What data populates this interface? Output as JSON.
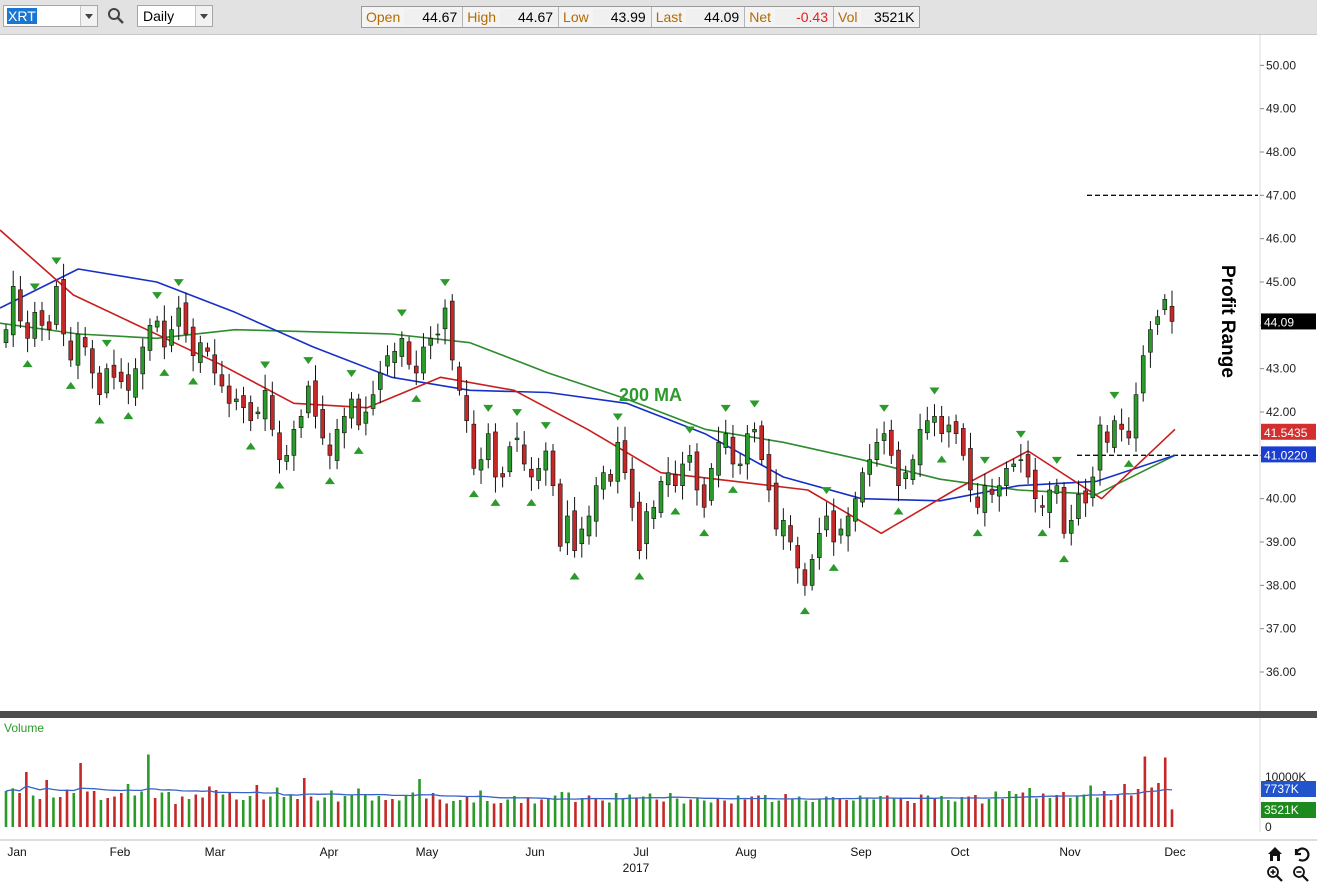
{
  "toolbar": {
    "symbol_value": "XRT",
    "period_value": "Daily",
    "quote": [
      {
        "label": "Open",
        "value": "44.67",
        "color": "#000000"
      },
      {
        "label": "High",
        "value": "44.67",
        "color": "#000000"
      },
      {
        "label": "Low",
        "value": "43.99",
        "color": "#000000"
      },
      {
        "label": "Last",
        "value": "44.09",
        "color": "#000000"
      },
      {
        "label": "Net",
        "value": "-0.43",
        "color": "#e02020"
      },
      {
        "label": "Vol",
        "value": "3521K",
        "color": "#000000"
      }
    ]
  },
  "chart_data": {
    "type": "candlestick",
    "y_ticks": [
      "36.00",
      "37.00",
      "38.00",
      "39.00",
      "40.00",
      "41.00",
      "42.00",
      "43.00",
      "44.00",
      "45.00",
      "46.00",
      "47.00",
      "48.00",
      "49.00",
      "50.00"
    ],
    "y_range": [
      35.1,
      50.7
    ],
    "x_labels": [
      "Jan",
      "Feb",
      "Mar",
      "Apr",
      "May",
      "Jun",
      "Jul",
      "Aug",
      "Sep",
      "Oct",
      "Nov",
      "Dec"
    ],
    "year_label": "2017",
    "price_labels": [
      {
        "text": "44.09",
        "value": 44.09,
        "bg": "#000000",
        "fg": "#ffffff"
      },
      {
        "text": "41.5435",
        "value": 41.5435,
        "bg": "#d32f2f",
        "fg": "#ffffff"
      },
      {
        "text": "41.0220",
        "value": 41.022,
        "bg": "#1a3fd0",
        "fg": "#ffffff"
      }
    ],
    "annotations": [
      {
        "text": "200 MA",
        "color": "#2e9a2e"
      },
      {
        "text": "Profit Range",
        "color": "#000000"
      }
    ],
    "reference_lines": [
      47.0,
      41.0
    ],
    "closes": [
      43.9,
      44.9,
      44.1,
      43.7,
      44.3,
      44.0,
      43.9,
      44.9,
      43.8,
      43.2,
      43.8,
      43.5,
      42.9,
      42.4,
      43.0,
      42.8,
      42.7,
      42.5,
      43.0,
      43.5,
      44.0,
      44.1,
      43.5,
      43.9,
      44.4,
      43.8,
      43.3,
      43.6,
      43.4,
      42.9,
      42.6,
      42.2,
      42.3,
      42.1,
      41.8,
      42.0,
      42.5,
      41.6,
      40.9,
      41.0,
      41.6,
      41.9,
      42.6,
      41.9,
      41.4,
      41.0,
      41.6,
      41.9,
      42.3,
      41.7,
      42.0,
      42.4,
      42.9,
      43.3,
      43.4,
      43.7,
      43.1,
      42.9,
      43.5,
      43.7,
      43.8,
      44.4,
      43.2,
      42.5,
      41.8,
      40.7,
      40.9,
      41.5,
      40.5,
      40.5,
      41.2,
      41.4,
      40.8,
      40.5,
      40.7,
      41.1,
      40.3,
      38.9,
      39.6,
      38.8,
      39.3,
      39.6,
      40.3,
      40.6,
      40.4,
      41.3,
      40.6,
      39.8,
      38.8,
      39.7,
      39.8,
      40.4,
      40.6,
      40.3,
      40.8,
      41.0,
      40.2,
      39.8,
      40.7,
      41.3,
      41.5,
      40.8,
      40.8,
      41.5,
      41.6,
      40.9,
      40.2,
      39.3,
      39.5,
      39.0,
      38.4,
      38.0,
      38.6,
      39.2,
      39.6,
      39.0,
      39.3,
      39.6,
      40.0,
      40.6,
      40.9,
      41.3,
      41.5,
      41.0,
      40.3,
      40.6,
      40.9,
      41.6,
      41.8,
      41.9,
      41.5,
      41.7,
      41.5,
      41.0,
      40.2,
      39.8,
      40.3,
      40.1,
      40.3,
      40.7,
      40.8,
      40.9,
      40.5,
      40.0,
      39.8,
      40.2,
      40.3,
      39.2,
      39.5,
      40.1,
      39.9,
      40.5,
      41.7,
      41.3,
      41.8,
      41.6,
      41.4,
      42.4,
      43.3,
      43.9,
      44.2,
      44.6,
      44.09
    ],
    "ma_200": {
      "color": "#2e8b2e",
      "values": [
        44.05,
        43.8,
        43.7,
        43.9,
        43.85,
        43.8,
        43.6,
        42.9,
        42.3,
        41.6,
        41.3,
        40.9,
        40.45,
        40.2,
        40.1,
        41.0
      ]
    },
    "ma_50": {
      "color": "#1530c8",
      "values": [
        44.4,
        45.3,
        45.0,
        44.3,
        43.5,
        42.8,
        42.5,
        42.45,
        42.2,
        41.5,
        40.5,
        40.0,
        39.95,
        40.3,
        40.4,
        41.0
      ]
    },
    "ma_20": {
      "color": "#c81e1e",
      "values": [
        46.2,
        44.7,
        43.9,
        43.1,
        42.2,
        42.1,
        42.8,
        42.5,
        41.6,
        40.6,
        40.4,
        40.2,
        39.2,
        40.2,
        41.1,
        40.0,
        41.6
      ]
    }
  },
  "volume": {
    "title": "Volume",
    "axis_labels": [
      "10000K",
      "0"
    ],
    "labels": [
      {
        "text": "7737K",
        "bg": "#2255cc",
        "fg": "#ffffff"
      },
      {
        "text": "3521K",
        "bg": "#1d8a1d",
        "fg": "#ffffff"
      }
    ],
    "values_k": [
      7200,
      7737,
      6800,
      11000,
      6300,
      5600,
      9400,
      5900,
      6000,
      7500,
      6800,
      12800,
      7100,
      7200,
      5400,
      5800,
      6100,
      6800,
      8600,
      6300,
      7100,
      14500,
      5800,
      6900,
      7000,
      4600,
      6100,
      5600,
      6500,
      5900,
      8100,
      7400,
      6500,
      6800,
      5500,
      5400,
      6200,
      8400,
      5500,
      6100,
      7900,
      6000,
      6400,
      5600,
      9800,
      6100,
      5300,
      5900,
      7300,
      5100,
      6200,
      6500,
      7700,
      6600,
      5300,
      6200,
      5400,
      5600,
      5300,
      6300,
      6900,
      9600,
      5700,
      6800,
      5500,
      4700,
      5200,
      5400,
      6000,
      4900,
      7300,
      5200,
      4700,
      4800,
      5500,
      6200,
      4800,
      5800,
      4700,
      5500,
      5600,
      6300,
      7000,
      6900,
      5000,
      5800,
      6300,
      5600,
      5300,
      4900,
      6800,
      5700,
      6500,
      5700,
      6100,
      6700,
      5500,
      5100,
      6800,
      5700,
      4700,
      5500,
      5800,
      5300,
      4900,
      5600,
      5300,
      4700,
      6300,
      5500,
      6100,
      6300,
      6400,
      5000,
      5300,
      6600,
      5600,
      6100,
      5300,
      5000,
      5600,
      6100,
      6000,
      5800,
      5400,
      5300,
      6300,
      5900,
      5500,
      6200,
      6300,
      5800,
      5900,
      5200,
      4800,
      6500,
      6300,
      5800,
      6200,
      5400,
      5100,
      6000,
      6100,
      6400,
      4700,
      5600,
      7100,
      5600,
      7200,
      6600,
      6900,
      7800,
      5700,
      6700,
      5800,
      6400,
      7000,
      5800,
      6100,
      6500,
      8300,
      5900,
      7200,
      5400,
      6500,
      8600,
      6300,
      7600,
      14100,
      7900,
      8800,
      13900,
      3521
    ]
  },
  "nav": {
    "home_icon": "home-icon",
    "undo_icon": "undo-icon",
    "zoom_in_icon": "zoom-in-icon",
    "zoom_out_icon": "zoom-out-icon"
  }
}
